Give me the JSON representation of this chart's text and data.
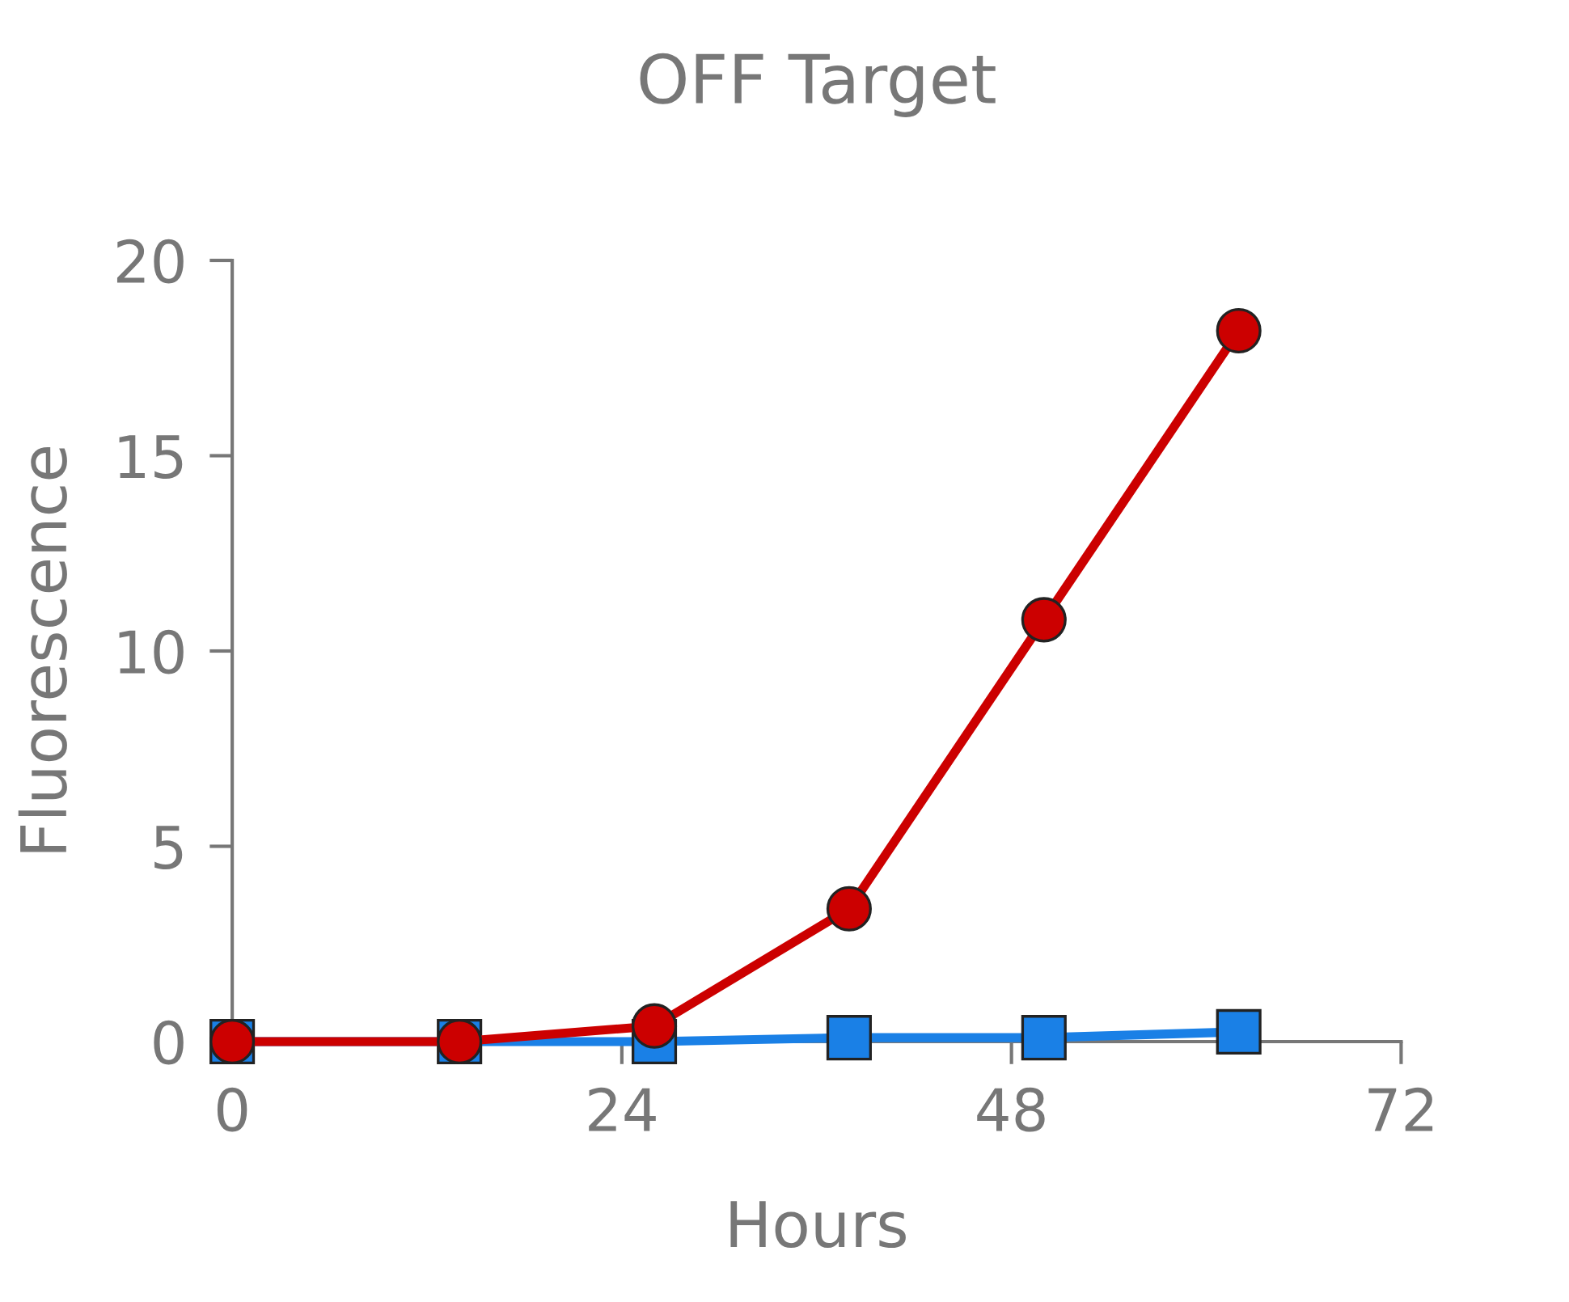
{
  "chart_data": {
    "type": "line",
    "title": "OFF Target",
    "xlabel": "Hours",
    "ylabel": "Fluorescence",
    "xlim": [
      0,
      72
    ],
    "xticks": [
      0,
      24,
      48,
      72
    ],
    "ylim": [
      0,
      20
    ],
    "yticks": [
      0,
      5,
      10,
      15,
      20
    ],
    "grid": false,
    "legend": false,
    "series": [
      {
        "color": "#1a80e6",
        "marker": "square",
        "x": [
          0,
          14,
          26,
          38,
          50,
          62
        ],
        "values": [
          0,
          0,
          0,
          0.1,
          0.1,
          0.25
        ]
      },
      {
        "color": "#cc0000",
        "marker": "circle",
        "x": [
          0,
          14,
          26,
          38,
          50,
          62
        ],
        "values": [
          0,
          0,
          0.4,
          3.4,
          10.8,
          18.2
        ]
      }
    ]
  }
}
